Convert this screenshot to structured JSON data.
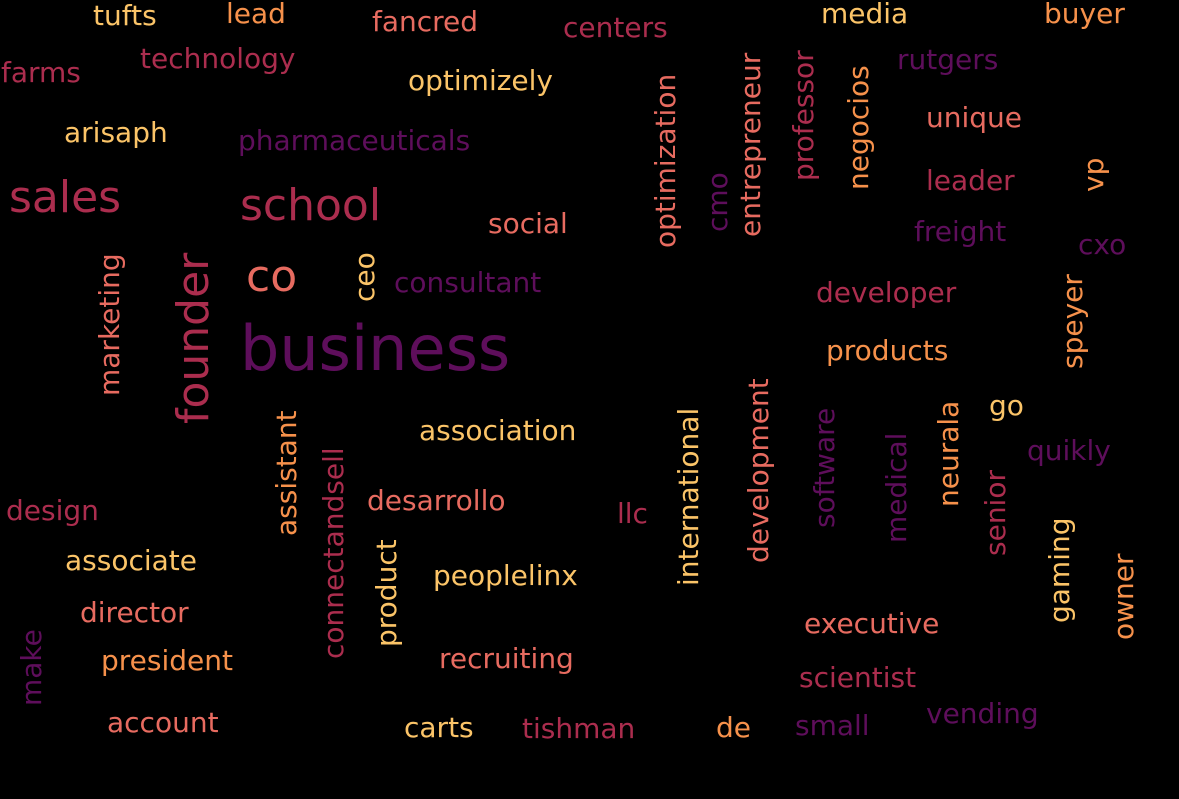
{
  "palette": {
    "background": "#000000",
    "dark_purple": "#5e0e5b",
    "crimson": "#ab2d4e",
    "salmon": "#e76b60",
    "orange": "#f6914b",
    "yellow": "#fbc468"
  },
  "words": [
    {
      "text": "tufts",
      "color": "#fbc468"
    },
    {
      "text": "lead",
      "color": "#f6914b"
    },
    {
      "text": "fancred",
      "color": "#e76b60"
    },
    {
      "text": "centers",
      "color": "#ab2d4e"
    },
    {
      "text": "media",
      "color": "#fbc468"
    },
    {
      "text": "buyer",
      "color": "#f6914b"
    },
    {
      "text": "farms",
      "color": "#ab2d4e"
    },
    {
      "text": "technology",
      "color": "#ab2d4e"
    },
    {
      "text": "optimizely",
      "color": "#fbc468"
    },
    {
      "text": "rutgers",
      "color": "#5e0e5b"
    },
    {
      "text": "arisaph",
      "color": "#fbc468"
    },
    {
      "text": "pharmaceuticals",
      "color": "#5e0e5b"
    },
    {
      "text": "unique",
      "color": "#e76b60"
    },
    {
      "text": "sales",
      "color": "#ab2d4e"
    },
    {
      "text": "school",
      "color": "#ab2d4e"
    },
    {
      "text": "leader",
      "color": "#ab2d4e"
    },
    {
      "text": "social",
      "color": "#e76b60"
    },
    {
      "text": "freight",
      "color": "#5e0e5b"
    },
    {
      "text": "cxo",
      "color": "#5e0e5b"
    },
    {
      "text": "co",
      "color": "#e76b60"
    },
    {
      "text": "consultant",
      "color": "#5e0e5b"
    },
    {
      "text": "developer",
      "color": "#ab2d4e"
    },
    {
      "text": "business",
      "color": "#5e0e5b"
    },
    {
      "text": "products",
      "color": "#f6914b"
    },
    {
      "text": "go",
      "color": "#fbc468"
    },
    {
      "text": "association",
      "color": "#fbc468"
    },
    {
      "text": "quikly",
      "color": "#5e0e5b"
    },
    {
      "text": "design",
      "color": "#ab2d4e"
    },
    {
      "text": "desarrollo",
      "color": "#e76b60"
    },
    {
      "text": "llc",
      "color": "#ab2d4e"
    },
    {
      "text": "associate",
      "color": "#fbc468"
    },
    {
      "text": "peoplelinx",
      "color": "#fbc468"
    },
    {
      "text": "director",
      "color": "#e76b60"
    },
    {
      "text": "executive",
      "color": "#e76b60"
    },
    {
      "text": "president",
      "color": "#f6914b"
    },
    {
      "text": "recruiting",
      "color": "#e76b60"
    },
    {
      "text": "scientist",
      "color": "#ab2d4e"
    },
    {
      "text": "vending",
      "color": "#5e0e5b"
    },
    {
      "text": "account",
      "color": "#e76b60"
    },
    {
      "text": "carts",
      "color": "#fbc468"
    },
    {
      "text": "tishman",
      "color": "#ab2d4e"
    },
    {
      "text": "de",
      "color": "#f6914b"
    },
    {
      "text": "small",
      "color": "#5e0e5b"
    },
    {
      "text": "optimization",
      "color": "#e76b60"
    },
    {
      "text": "cmo",
      "color": "#5e0e5b"
    },
    {
      "text": "entrepreneur",
      "color": "#e76b60"
    },
    {
      "text": "professor",
      "color": "#ab2d4e"
    },
    {
      "text": "negocios",
      "color": "#f6914b"
    },
    {
      "text": "vp",
      "color": "#f6914b"
    },
    {
      "text": "marketing",
      "color": "#e76b60"
    },
    {
      "text": "founder",
      "color": "#ab2d4e"
    },
    {
      "text": "ceo",
      "color": "#fbc468"
    },
    {
      "text": "speyer",
      "color": "#f6914b"
    },
    {
      "text": "assistant",
      "color": "#f6914b"
    },
    {
      "text": "connectandsell",
      "color": "#ab2d4e"
    },
    {
      "text": "product",
      "color": "#fbc468"
    },
    {
      "text": "international",
      "color": "#fbc468"
    },
    {
      "text": "development",
      "color": "#e76b60"
    },
    {
      "text": "software",
      "color": "#5e0e5b"
    },
    {
      "text": "medical",
      "color": "#5e0e5b"
    },
    {
      "text": "neurala",
      "color": "#f6914b"
    },
    {
      "text": "senior",
      "color": "#ab2d4e"
    },
    {
      "text": "gaming",
      "color": "#fbc468"
    },
    {
      "text": "owner",
      "color": "#f6914b"
    },
    {
      "text": "make",
      "color": "#5e0e5b"
    }
  ]
}
